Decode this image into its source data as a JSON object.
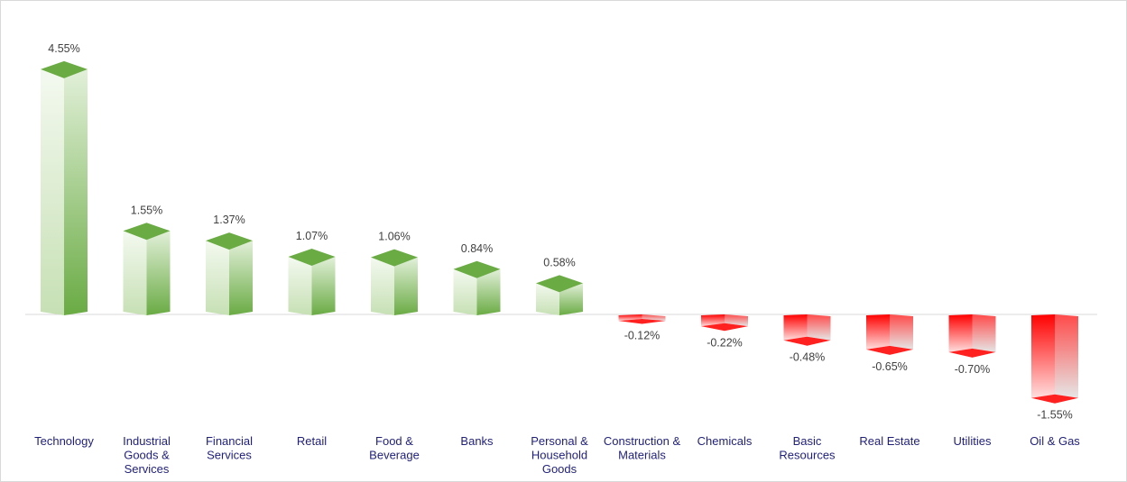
{
  "chart_data": {
    "type": "bar",
    "title": "",
    "xlabel": "",
    "ylabel": "",
    "categories": [
      [
        "Technology"
      ],
      [
        "Industrial",
        "Goods &",
        "Services"
      ],
      [
        "Financial",
        "Services"
      ],
      [
        "Retail"
      ],
      [
        "Food &",
        "Beverage"
      ],
      [
        "Banks"
      ],
      [
        "Personal &",
        "Household",
        "Goods"
      ],
      [
        "Construction &",
        "Materials"
      ],
      [
        "Chemicals"
      ],
      [
        "Basic",
        "Resources"
      ],
      [
        "Real Estate"
      ],
      [
        "Utilities"
      ],
      [
        "Oil & Gas"
      ]
    ],
    "values": [
      4.55,
      1.55,
      1.37,
      1.07,
      1.06,
      0.84,
      0.58,
      -0.12,
      -0.22,
      -0.48,
      -0.65,
      -0.7,
      -1.55
    ],
    "labels": [
      "4.55%",
      "1.55%",
      "1.37%",
      "1.07%",
      "1.06%",
      "0.84%",
      "0.58%",
      "-0.12%",
      "-0.22%",
      "-0.48%",
      "-0.65%",
      "-0.70%",
      "-1.55%"
    ],
    "colors": {
      "positive": "#70ad47",
      "negative": "#ff0000",
      "category_text": "#1f1f7a"
    },
    "grid": false,
    "legend": "none"
  }
}
